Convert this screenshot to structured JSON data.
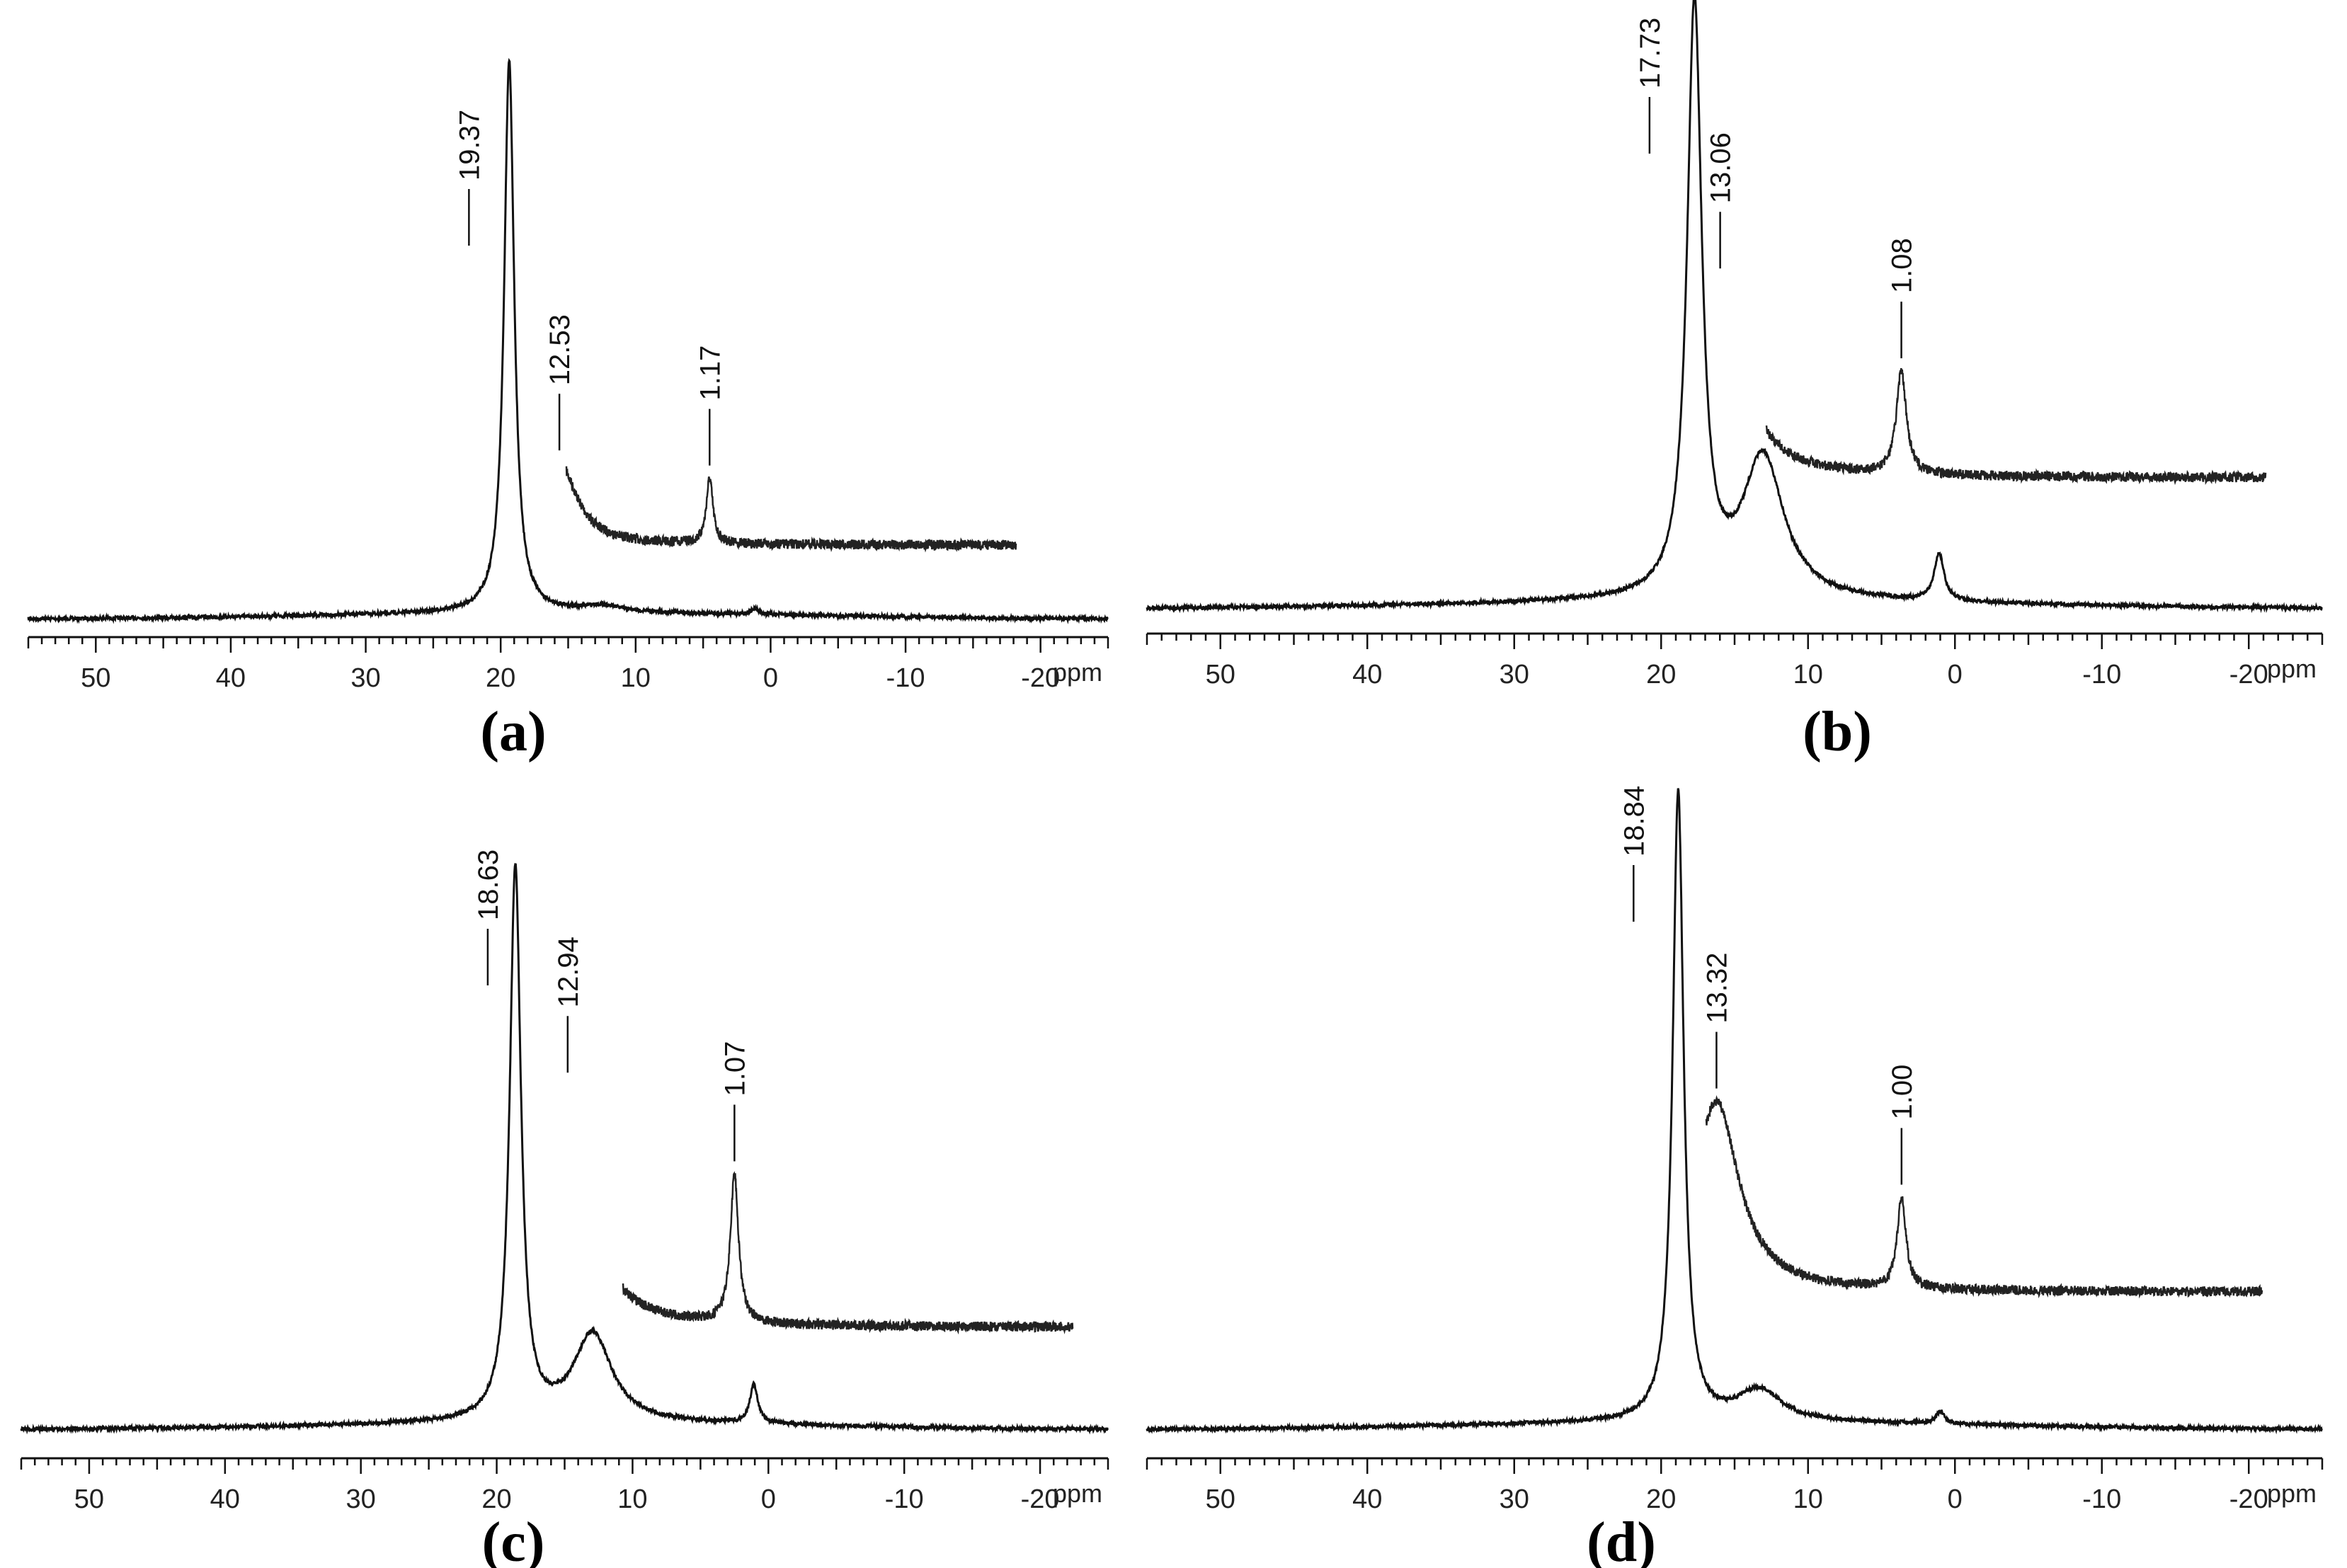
{
  "figure": {
    "x_unit": "ppm",
    "tick_labels": [
      "50",
      "40",
      "30",
      "20",
      "10",
      "0",
      "-10",
      "-20"
    ]
  },
  "chart_data": [
    {
      "type": "line",
      "panel": "(a)",
      "title": "(a)",
      "xlabel": "ppm",
      "xlim": [
        55,
        -25
      ],
      "xticks": [
        50,
        40,
        30,
        20,
        10,
        0,
        -10,
        -20
      ],
      "main_peaks": [
        {
          "ppm": 19.37,
          "height": 1.0,
          "width": 0.45
        },
        {
          "ppm": 12.53,
          "height": 0.012,
          "width": 1.6
        },
        {
          "ppm": 1.17,
          "height": 0.01,
          "width": 0.35
        }
      ],
      "inset_range": [
        12,
        -22
      ],
      "inset_peaks": [
        {
          "ppm": 19.37,
          "height": 1.0,
          "width": 0.45
        },
        {
          "ppm": 12.53,
          "height": 0.21,
          "width": 1.6
        },
        {
          "ppm": 1.17,
          "height": 0.17,
          "width": 0.3
        }
      ],
      "inset_clip": 0.75,
      "annotations": [
        {
          "label": "19.37",
          "ppm": 19.37
        },
        {
          "label": "12.53",
          "ppm": 12.53
        },
        {
          "label": "1.17",
          "ppm": 1.17
        }
      ]
    },
    {
      "type": "line",
      "panel": "(b)",
      "title": "(b)",
      "xlabel": "ppm",
      "xlim": [
        55,
        -25
      ],
      "xticks": [
        50,
        40,
        30,
        20,
        10,
        0,
        -10,
        -20
      ],
      "main_peaks": [
        {
          "ppm": 17.73,
          "height": 1.0,
          "width": 0.6
        },
        {
          "ppm": 13.06,
          "height": 0.24,
          "width": 1.7
        },
        {
          "ppm": 1.08,
          "height": 0.08,
          "width": 0.4
        }
      ],
      "inset_range": [
        10,
        -23
      ],
      "inset_peaks": [
        {
          "ppm": 17.73,
          "height": 1.0,
          "width": 0.6
        },
        {
          "ppm": 13.06,
          "height": 0.52,
          "width": 1.7
        },
        {
          "ppm": 1.08,
          "height": 0.28,
          "width": 0.4
        }
      ],
      "inset_clip": 0.85,
      "annotations": [
        {
          "label": "17.73",
          "ppm": 17.73
        },
        {
          "label": "13.06",
          "ppm": 13.06
        },
        {
          "label": "1.08",
          "ppm": 1.08
        }
      ]
    },
    {
      "type": "line",
      "panel": "(c)",
      "title": "(c)",
      "xlabel": "ppm",
      "xlim": [
        55,
        -25
      ],
      "xticks": [
        50,
        40,
        30,
        20,
        10,
        0,
        -10,
        -20
      ],
      "main_peaks": [
        {
          "ppm": 18.63,
          "height": 1.0,
          "width": 0.5
        },
        {
          "ppm": 12.94,
          "height": 0.16,
          "width": 1.7
        },
        {
          "ppm": 1.07,
          "height": 0.07,
          "width": 0.35
        }
      ],
      "inset_range": [
        9,
        -23
      ],
      "inset_peaks": [
        {
          "ppm": 18.63,
          "height": 1.0,
          "width": 0.5
        },
        {
          "ppm": 12.94,
          "height": 0.58,
          "width": 1.7
        },
        {
          "ppm": 1.07,
          "height": 0.36,
          "width": 0.35
        }
      ],
      "inset_clip": 0.8,
      "annotations": [
        {
          "label": "18.63",
          "ppm": 18.63
        },
        {
          "label": "12.94",
          "ppm": 12.94
        },
        {
          "label": "1.07",
          "ppm": 1.07
        }
      ]
    },
    {
      "type": "line",
      "panel": "(d)",
      "title": "(d)",
      "xlabel": "ppm",
      "xlim": [
        55,
        -25
      ],
      "xticks": [
        50,
        40,
        30,
        20,
        10,
        0,
        -10,
        -20
      ],
      "main_peaks": [
        {
          "ppm": 18.84,
          "height": 1.0,
          "width": 0.45
        },
        {
          "ppm": 13.32,
          "height": 0.05,
          "width": 1.8
        },
        {
          "ppm": 1.0,
          "height": 0.02,
          "width": 0.35
        }
      ],
      "inset_range": [
        14,
        -23
      ],
      "inset_peaks": [
        {
          "ppm": 18.84,
          "height": 1.0,
          "width": 0.45
        },
        {
          "ppm": 13.32,
          "height": 0.5,
          "width": 1.8
        },
        {
          "ppm": 1.0,
          "height": 0.24,
          "width": 0.35
        }
      ],
      "inset_clip": 0.95,
      "annotations": [
        {
          "label": "18.84",
          "ppm": 18.84
        },
        {
          "label": "13.32",
          "ppm": 13.32
        },
        {
          "label": "1.00",
          "ppm": 1.0
        }
      ]
    }
  ]
}
